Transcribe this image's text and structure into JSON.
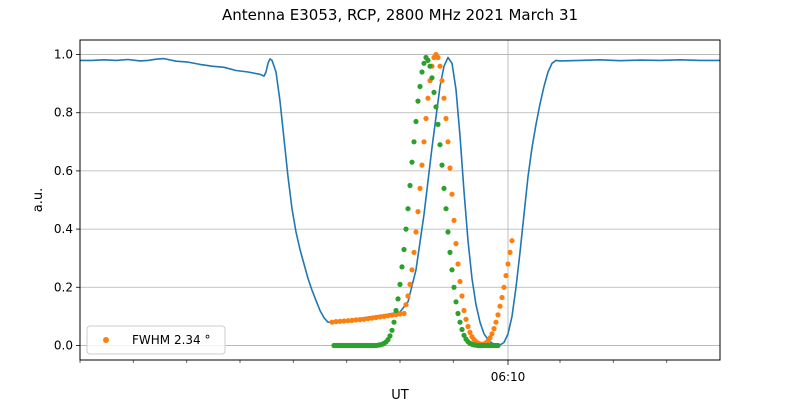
{
  "chart_data": {
    "type": "line",
    "title": "Antenna E3053, RCP, 2800 MHz 2021 March 31",
    "xlabel": "UT",
    "ylabel": "a.u.",
    "xlim": [
      0,
      160
    ],
    "ylim": [
      -0.05,
      1.05
    ],
    "x_major_ticks": [
      {
        "x": 107,
        "label": "06:10"
      }
    ],
    "x_minor_ticks": [
      0,
      13.3,
      26.7,
      40,
      53.3,
      66.7,
      80,
      93.3,
      120,
      133.3,
      146.7
    ],
    "y_ticks": [
      0.0,
      0.2,
      0.4,
      0.6,
      0.8,
      1.0
    ],
    "y_tick_labels": [
      "0.0",
      "0.2",
      "0.4",
      "0.6",
      "0.8",
      "1.0"
    ],
    "grid": true,
    "legend_position": "lower-left",
    "series": [
      {
        "kind": "line",
        "color": "#1f77b4",
        "x": [
          0,
          3,
          6,
          9,
          12,
          15,
          17,
          19,
          21,
          24,
          27,
          30,
          33,
          36,
          39,
          42,
          45,
          46,
          46.5,
          47,
          47.5,
          48,
          49,
          50,
          51,
          52,
          53,
          54,
          55,
          56,
          57,
          58,
          59,
          60,
          61,
          62,
          63,
          64,
          65,
          66,
          67,
          68,
          70,
          72,
          74,
          76,
          78,
          80,
          82,
          84,
          86,
          88,
          90,
          91,
          92,
          93,
          94,
          95,
          96,
          97,
          98,
          99,
          100,
          101,
          102,
          103,
          104,
          105,
          106,
          107,
          108,
          109,
          110,
          111,
          112,
          113,
          114,
          115,
          116,
          117,
          118,
          119,
          120,
          125,
          130,
          135,
          140,
          145,
          150,
          155,
          160
        ],
        "y": [
          0.98,
          0.98,
          0.982,
          0.98,
          0.983,
          0.978,
          0.98,
          0.984,
          0.986,
          0.977,
          0.974,
          0.966,
          0.96,
          0.956,
          0.945,
          0.94,
          0.932,
          0.926,
          0.94,
          0.97,
          0.985,
          0.98,
          0.94,
          0.84,
          0.71,
          0.58,
          0.47,
          0.39,
          0.33,
          0.28,
          0.23,
          0.19,
          0.155,
          0.12,
          0.095,
          0.08,
          0.08,
          0.081,
          0.083,
          0.085,
          0.087,
          0.089,
          0.093,
          0.097,
          0.101,
          0.105,
          0.11,
          0.115,
          0.15,
          0.26,
          0.45,
          0.68,
          0.89,
          0.96,
          0.99,
          0.97,
          0.88,
          0.72,
          0.53,
          0.36,
          0.23,
          0.14,
          0.08,
          0.04,
          0.02,
          0.008,
          0.003,
          0.002,
          0.01,
          0.04,
          0.1,
          0.2,
          0.32,
          0.45,
          0.58,
          0.68,
          0.76,
          0.83,
          0.89,
          0.94,
          0.97,
          0.98,
          0.978,
          0.98,
          0.982,
          0.979,
          0.981,
          0.98,
          0.982,
          0.98,
          0.98
        ]
      },
      {
        "kind": "scatter",
        "name": "FWHM 2.34$^\\circ$",
        "legend_label": "FWHM 2.34 °",
        "color": "#ff7f0e",
        "x": [
          63,
          64,
          65,
          66,
          67,
          68,
          69,
          70,
          71,
          72,
          73,
          74,
          75,
          76,
          77,
          78,
          79,
          80,
          81,
          81.5,
          82,
          82.5,
          83,
          83.5,
          84,
          84.5,
          85,
          85.5,
          86,
          86.5,
          87,
          87.5,
          88,
          88.5,
          89,
          89.5,
          90,
          90.5,
          91,
          91.5,
          92,
          92.5,
          93,
          93.5,
          94,
          94.5,
          95,
          95.5,
          96,
          96.5,
          97,
          97.5,
          98,
          98.5,
          99,
          99.5,
          100,
          100.5,
          101,
          101.5,
          102,
          102.5,
          103,
          103.5,
          104,
          104.5,
          105,
          105.5,
          106,
          106.5,
          107,
          107.5,
          108
        ],
        "y": [
          0.08,
          0.082,
          0.083,
          0.084,
          0.085,
          0.086,
          0.088,
          0.089,
          0.09,
          0.092,
          0.094,
          0.096,
          0.098,
          0.1,
          0.102,
          0.104,
          0.106,
          0.108,
          0.11,
          0.14,
          0.17,
          0.21,
          0.26,
          0.32,
          0.39,
          0.46,
          0.54,
          0.62,
          0.7,
          0.78,
          0.85,
          0.91,
          0.96,
          0.99,
          1.0,
          0.99,
          0.96,
          0.91,
          0.85,
          0.78,
          0.7,
          0.61,
          0.52,
          0.43,
          0.35,
          0.28,
          0.22,
          0.17,
          0.12,
          0.09,
          0.065,
          0.045,
          0.03,
          0.02,
          0.013,
          0.008,
          0.005,
          0.004,
          0.005,
          0.009,
          0.016,
          0.026,
          0.04,
          0.058,
          0.08,
          0.105,
          0.135,
          0.165,
          0.2,
          0.24,
          0.28,
          0.32,
          0.36
        ]
      },
      {
        "kind": "scatter",
        "color": "#2ca02c",
        "x": [
          63.5,
          64,
          64.5,
          65,
          65.5,
          66,
          66.5,
          67,
          67.5,
          68,
          68.5,
          69,
          69.5,
          70,
          70.5,
          71,
          71.5,
          72,
          72.5,
          73,
          73.5,
          74,
          74.5,
          75,
          75.5,
          76,
          76.5,
          77,
          77.5,
          78,
          78.5,
          79,
          79.5,
          80,
          80.5,
          81,
          81.5,
          82,
          82.5,
          83,
          83.5,
          84,
          84.5,
          85,
          85.5,
          86,
          86.5,
          87,
          87.5,
          88,
          88.5,
          89,
          89.5,
          90,
          90.5,
          91,
          91.5,
          92,
          92.5,
          93,
          93.5,
          94,
          94.5,
          95,
          95.5,
          96,
          96.5,
          97,
          97.5,
          98,
          98.5,
          99,
          99.5,
          100,
          100.5,
          101,
          101.5,
          102,
          102.5,
          103,
          103.5,
          104,
          104.5
        ],
        "y": [
          0,
          0,
          0,
          0,
          0,
          0,
          0,
          0,
          0,
          0,
          0,
          0,
          0,
          0,
          0,
          0,
          0,
          0,
          0,
          0,
          0,
          0,
          0.001,
          0.002,
          0.004,
          0.007,
          0.012,
          0.02,
          0.033,
          0.052,
          0.08,
          0.12,
          0.16,
          0.21,
          0.27,
          0.33,
          0.4,
          0.47,
          0.55,
          0.63,
          0.7,
          0.77,
          0.84,
          0.89,
          0.94,
          0.97,
          0.99,
          0.98,
          0.96,
          0.92,
          0.87,
          0.82,
          0.76,
          0.69,
          0.62,
          0.54,
          0.47,
          0.39,
          0.32,
          0.26,
          0.2,
          0.15,
          0.11,
          0.08,
          0.055,
          0.035,
          0.022,
          0.013,
          0.007,
          0.004,
          0.002,
          0.001,
          0,
          0,
          0,
          0,
          0,
          0,
          0,
          0,
          0,
          0,
          0
        ]
      }
    ]
  }
}
